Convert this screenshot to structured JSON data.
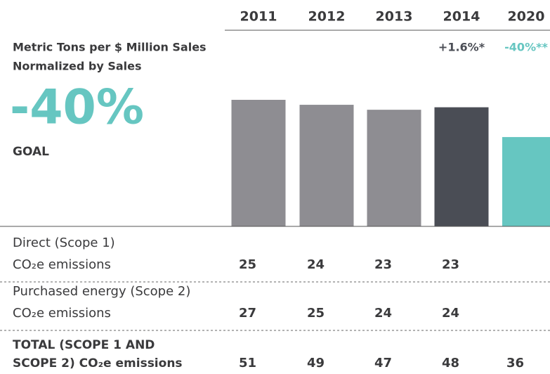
{
  "chart_data": {
    "type": "bar",
    "title": "Metric Tons per $ Million Sales",
    "subtitle": "Normalized by Sales",
    "goal_value": "-40%",
    "goal_label": "GOAL",
    "goal_color": "#66c6c1",
    "categories": [
      "2011",
      "2012",
      "2013",
      "2014",
      "2020"
    ],
    "change_labels": [
      null,
      null,
      null,
      "+1.6%*",
      "-40%**"
    ],
    "values": [
      51,
      49,
      47,
      48,
      36
    ],
    "colors": [
      "#8e8d92",
      "#8e8d92",
      "#8e8d92",
      "#4a4d55",
      "#66c6c1"
    ],
    "rows": [
      {
        "label": [
          "Direct (Scope 1)",
          "CO₂e emissions"
        ],
        "values": [
          25,
          24,
          23,
          23,
          null
        ]
      },
      {
        "label": [
          "Purchased energy (Scope 2)",
          "CO₂e emissions"
        ],
        "values": [
          27,
          25,
          24,
          24,
          null
        ]
      }
    ],
    "total_label": [
      "TOTAL (SCOPE 1 AND",
      "SCOPE 2) CO₂e emissions"
    ]
  }
}
